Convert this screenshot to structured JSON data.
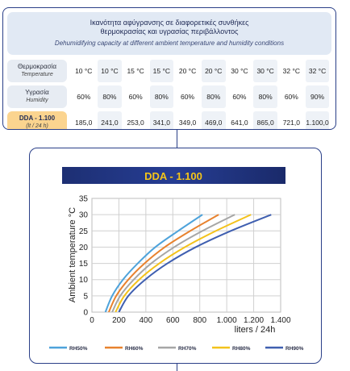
{
  "table": {
    "title_gr_line1": "Ικανότητα αφύγρανσης σε διαφορετικές συνθήκες",
    "title_gr_line2": "θερμοκρασίας και υγρασίας περιβάλλοντος",
    "title_en": "Dehumidifying capacity at different ambient temperature and humidity conditions",
    "row_temperature": {
      "label": "Θερμοκρασία",
      "sublabel": "Temperature",
      "values": [
        "10 °C",
        "10 °C",
        "15 °C",
        "15 °C",
        "20 °C",
        "20 °C",
        "30 °C",
        "30 °C",
        "32 °C",
        "32 °C"
      ]
    },
    "row_humidity": {
      "label": "Υγρασία",
      "sublabel": "Humidity",
      "values": [
        "60%",
        "80%",
        "60%",
        "80%",
        "60%",
        "80%",
        "60%",
        "80%",
        "60%",
        "90%"
      ]
    },
    "row_capacity": {
      "label": "DDA - 1.100",
      "sublabel": "(lt / 24 h)",
      "values": [
        "185,0",
        "241,0",
        "253,0",
        "341,0",
        "349,0",
        "469,0",
        "641,0",
        "865,0",
        "721,0",
        "1.100,0"
      ]
    }
  },
  "chart_data": {
    "type": "line",
    "title": "DDA - 1.100",
    "xlabel": "liters / 24h",
    "ylabel": "Ambient temperature °C",
    "xlim": [
      0,
      1400
    ],
    "ylim": [
      0,
      35
    ],
    "x_ticks": [
      0,
      200,
      400,
      600,
      800,
      1000,
      1200,
      1400
    ],
    "x_tick_labels": [
      "0",
      "200",
      "400",
      "600",
      "800",
      "1.000",
      "1.200",
      "1.400"
    ],
    "y_ticks": [
      0,
      5,
      10,
      15,
      20,
      25,
      30,
      35
    ],
    "y_tick_labels": [
      "0",
      "5",
      "10",
      "15",
      "20",
      "25",
      "30",
      "35"
    ],
    "grid": true,
    "legend_position": "bottom",
    "series": [
      {
        "name": "RH50%",
        "color": "#4ea3db",
        "x": [
          100,
          150,
          230,
          340,
          470,
          640,
          820
        ],
        "y": [
          0,
          5,
          10,
          15,
          20,
          25,
          30
        ]
      },
      {
        "name": "RH60%",
        "color": "#e8822e",
        "x": [
          125,
          180,
          270,
          390,
          540,
          730,
          940
        ],
        "y": [
          0,
          5,
          10,
          15,
          20,
          25,
          30
        ]
      },
      {
        "name": "RH70%",
        "color": "#a6a6a6",
        "x": [
          150,
          210,
          310,
          440,
          610,
          820,
          1060
        ],
        "y": [
          0,
          5,
          10,
          15,
          20,
          25,
          30
        ]
      },
      {
        "name": "RH80%",
        "color": "#f3c21b",
        "x": [
          175,
          240,
          350,
          500,
          690,
          920,
          1180
        ],
        "y": [
          0,
          5,
          10,
          15,
          20,
          25,
          30
        ]
      },
      {
        "name": "RH90%",
        "color": "#3f5fb0",
        "x": [
          200,
          270,
          395,
          560,
          770,
          1030,
          1330
        ],
        "y": [
          0,
          5,
          10,
          15,
          20,
          25,
          30
        ]
      }
    ]
  }
}
